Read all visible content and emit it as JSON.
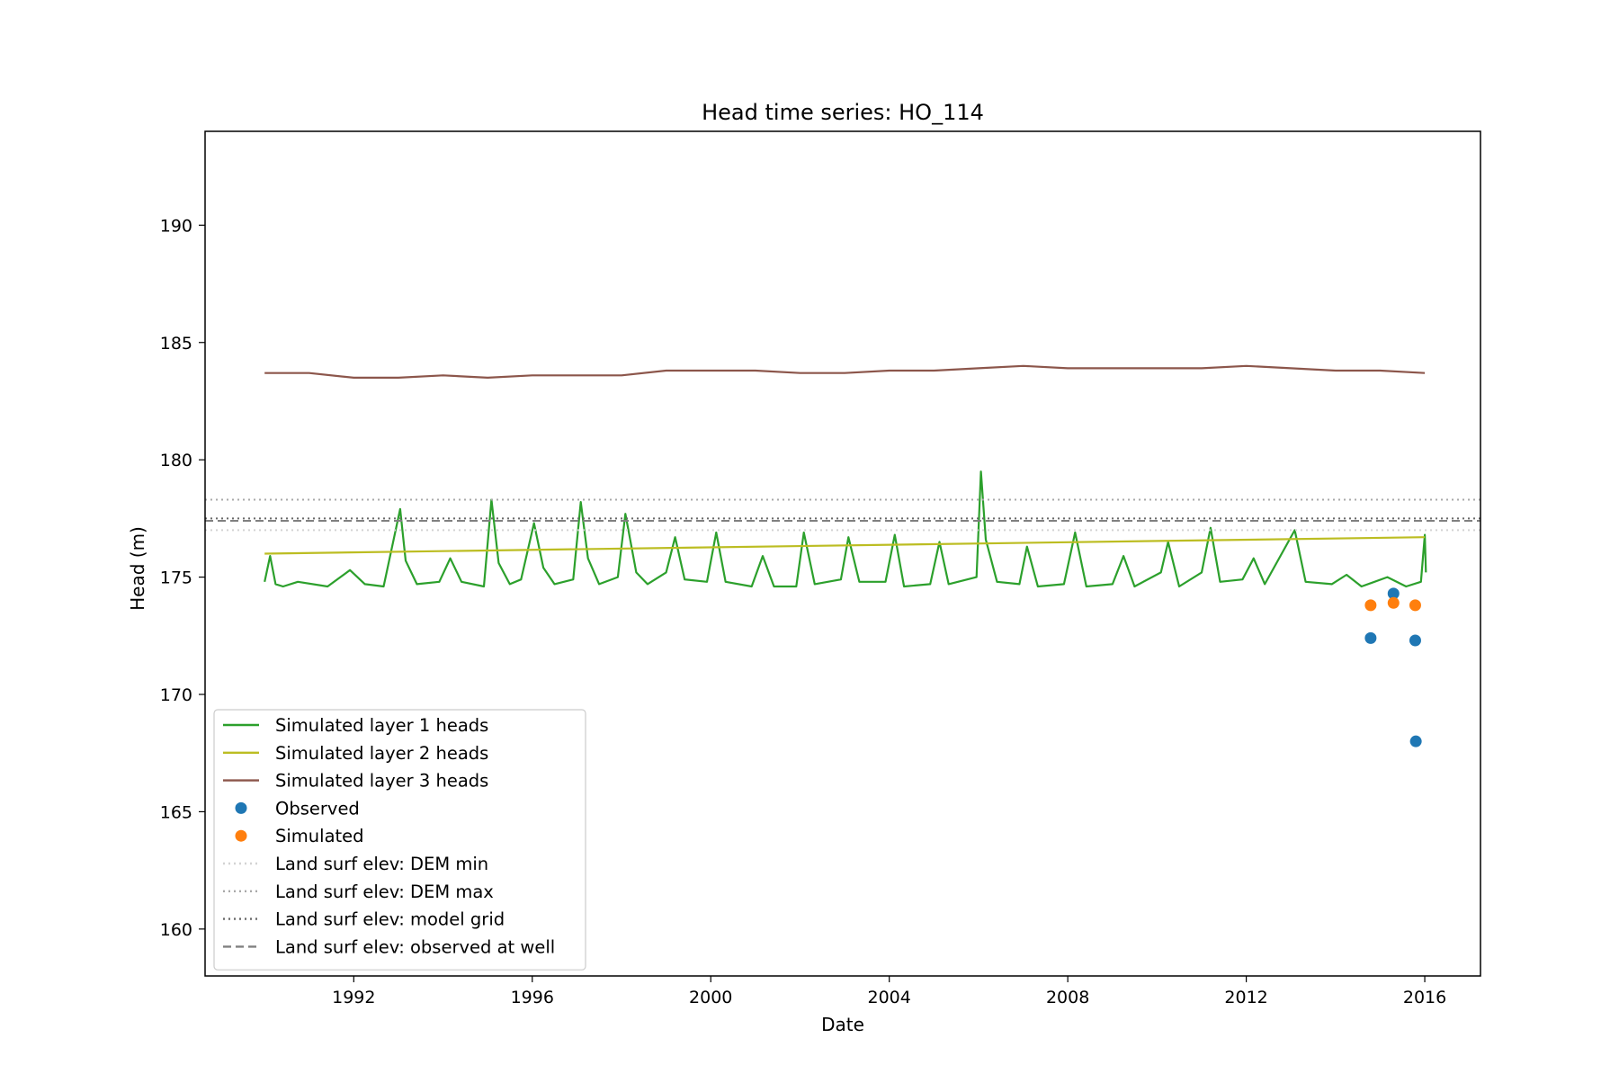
{
  "chart_data": {
    "type": "line",
    "title": "Head time series: HO_114",
    "xlabel": "Date",
    "ylabel": "Head (m)",
    "xlim": [
      "1988-09-01",
      "2017-04-01"
    ],
    "ylim": [
      158.0,
      194.0
    ],
    "x_ticks": [
      "1992",
      "1996",
      "2000",
      "2004",
      "2008",
      "2012",
      "2016"
    ],
    "y_ticks": [
      160,
      165,
      170,
      175,
      180,
      185,
      190
    ],
    "grid": false,
    "legend_location": "lower-left",
    "series": [
      {
        "name": "Simulated layer 1 heads",
        "kind": "line",
        "color": "#2ca02c",
        "points": [
          [
            "1990-01-01",
            174.8
          ],
          [
            "1990-02-15",
            175.9
          ],
          [
            "1990-04-01",
            174.7
          ],
          [
            "1990-06-01",
            174.6
          ],
          [
            "1990-10-01",
            174.8
          ],
          [
            "1991-06-01",
            174.6
          ],
          [
            "1991-12-01",
            175.3
          ],
          [
            "1992-04-01",
            174.7
          ],
          [
            "1992-09-01",
            174.6
          ],
          [
            "1993-01-15",
            177.9
          ],
          [
            "1993-03-01",
            175.7
          ],
          [
            "1993-06-01",
            174.7
          ],
          [
            "1993-12-01",
            174.8
          ],
          [
            "1994-03-01",
            175.8
          ],
          [
            "1994-06-01",
            174.8
          ],
          [
            "1994-12-01",
            174.6
          ],
          [
            "1995-02-01",
            178.3
          ],
          [
            "1995-04-01",
            175.6
          ],
          [
            "1995-07-01",
            174.7
          ],
          [
            "1995-10-01",
            174.9
          ],
          [
            "1996-01-15",
            177.3
          ],
          [
            "1996-04-01",
            175.4
          ],
          [
            "1996-07-01",
            174.7
          ],
          [
            "1996-12-01",
            174.9
          ],
          [
            "1997-02-01",
            178.2
          ],
          [
            "1997-04-01",
            175.8
          ],
          [
            "1997-07-01",
            174.7
          ],
          [
            "1997-12-01",
            175.0
          ],
          [
            "1998-02-01",
            177.7
          ],
          [
            "1998-05-01",
            175.2
          ],
          [
            "1998-08-01",
            174.7
          ],
          [
            "1999-01-01",
            175.2
          ],
          [
            "1999-03-15",
            176.7
          ],
          [
            "1999-06-01",
            174.9
          ],
          [
            "1999-12-01",
            174.8
          ],
          [
            "2000-02-15",
            176.9
          ],
          [
            "2000-05-01",
            174.8
          ],
          [
            "2000-12-01",
            174.6
          ],
          [
            "2001-03-01",
            175.9
          ],
          [
            "2001-06-01",
            174.6
          ],
          [
            "2001-12-01",
            174.6
          ],
          [
            "2002-02-01",
            176.9
          ],
          [
            "2002-05-01",
            174.7
          ],
          [
            "2002-12-01",
            174.9
          ],
          [
            "2003-02-01",
            176.7
          ],
          [
            "2003-05-01",
            174.8
          ],
          [
            "2003-12-01",
            174.8
          ],
          [
            "2004-02-15",
            176.8
          ],
          [
            "2004-05-01",
            174.6
          ],
          [
            "2004-12-01",
            174.7
          ],
          [
            "2005-02-15",
            176.5
          ],
          [
            "2005-05-01",
            174.7
          ],
          [
            "2005-12-15",
            175.0
          ],
          [
            "2006-01-20",
            179.5
          ],
          [
            "2006-03-01",
            176.6
          ],
          [
            "2006-06-01",
            174.8
          ],
          [
            "2006-12-01",
            174.7
          ],
          [
            "2007-02-01",
            176.3
          ],
          [
            "2007-05-01",
            174.6
          ],
          [
            "2007-12-01",
            174.7
          ],
          [
            "2008-03-01",
            176.9
          ],
          [
            "2008-06-01",
            174.6
          ],
          [
            "2009-01-01",
            174.7
          ],
          [
            "2009-04-01",
            175.9
          ],
          [
            "2009-07-01",
            174.6
          ],
          [
            "2010-02-01",
            175.2
          ],
          [
            "2010-04-01",
            176.5
          ],
          [
            "2010-07-01",
            174.6
          ],
          [
            "2011-01-01",
            175.2
          ],
          [
            "2011-03-15",
            177.1
          ],
          [
            "2011-06-01",
            174.8
          ],
          [
            "2011-12-01",
            174.9
          ],
          [
            "2012-03-01",
            175.8
          ],
          [
            "2012-06-01",
            174.7
          ],
          [
            "2013-02-01",
            177.0
          ],
          [
            "2013-05-01",
            174.8
          ],
          [
            "2013-12-01",
            174.7
          ],
          [
            "2014-04-01",
            175.1
          ],
          [
            "2014-08-01",
            174.6
          ],
          [
            "2015-03-01",
            175.0
          ],
          [
            "2015-08-01",
            174.6
          ],
          [
            "2015-12-01",
            174.8
          ],
          [
            "2016-01-01",
            176.8
          ],
          [
            "2016-01-10",
            175.2
          ]
        ]
      },
      {
        "name": "Simulated layer 2 heads",
        "kind": "line",
        "color": "#bcbd22",
        "points": [
          [
            "1990-01-01",
            176.0
          ],
          [
            "2016-01-01",
            176.7
          ]
        ]
      },
      {
        "name": "Simulated layer 3 heads",
        "kind": "line",
        "color": "#8c564b",
        "points": [
          [
            "1990-01-01",
            183.7
          ],
          [
            "1991-01-01",
            183.7
          ],
          [
            "1992-01-01",
            183.5
          ],
          [
            "1993-01-01",
            183.5
          ],
          [
            "1994-01-01",
            183.6
          ],
          [
            "1995-01-01",
            183.5
          ],
          [
            "1996-01-01",
            183.6
          ],
          [
            "1997-01-01",
            183.6
          ],
          [
            "1998-01-01",
            183.6
          ],
          [
            "1999-01-01",
            183.8
          ],
          [
            "2000-01-01",
            183.8
          ],
          [
            "2001-01-01",
            183.8
          ],
          [
            "2002-01-01",
            183.7
          ],
          [
            "2003-01-01",
            183.7
          ],
          [
            "2004-01-01",
            183.8
          ],
          [
            "2005-01-01",
            183.8
          ],
          [
            "2006-01-01",
            183.9
          ],
          [
            "2007-01-01",
            184.0
          ],
          [
            "2008-01-01",
            183.9
          ],
          [
            "2009-01-01",
            183.9
          ],
          [
            "2010-01-01",
            183.9
          ],
          [
            "2011-01-01",
            183.9
          ],
          [
            "2012-01-01",
            184.0
          ],
          [
            "2013-01-01",
            183.9
          ],
          [
            "2014-01-01",
            183.8
          ],
          [
            "2015-01-01",
            183.8
          ],
          [
            "2016-01-01",
            183.7
          ]
        ]
      },
      {
        "name": "Observed",
        "kind": "scatter",
        "color": "#1f77b4",
        "points": [
          [
            "2014-10-15",
            172.4
          ],
          [
            "2015-04-20",
            174.3
          ],
          [
            "2015-10-15",
            172.3
          ],
          [
            "2015-10-20",
            168.0
          ]
        ]
      },
      {
        "name": "Simulated",
        "kind": "scatter",
        "color": "#ff7f0e",
        "points": [
          [
            "2014-10-15",
            173.8
          ],
          [
            "2015-04-20",
            173.9
          ],
          [
            "2015-10-15",
            173.8
          ]
        ]
      },
      {
        "name": "Land surf elev: DEM min",
        "kind": "hline",
        "color": "#d3d3d3",
        "dash": "dotted",
        "value": 177.0
      },
      {
        "name": "Land surf elev: DEM max",
        "kind": "hline",
        "color": "#a9a9a9",
        "dash": "dotted",
        "value": 178.3
      },
      {
        "name": "Land surf elev: model grid",
        "kind": "hline",
        "color": "#696969",
        "dash": "dotted",
        "value": 177.5
      },
      {
        "name": "Land surf elev: observed at well",
        "kind": "hline",
        "color": "#808080",
        "dash": "dashed",
        "value": 177.4
      }
    ]
  }
}
